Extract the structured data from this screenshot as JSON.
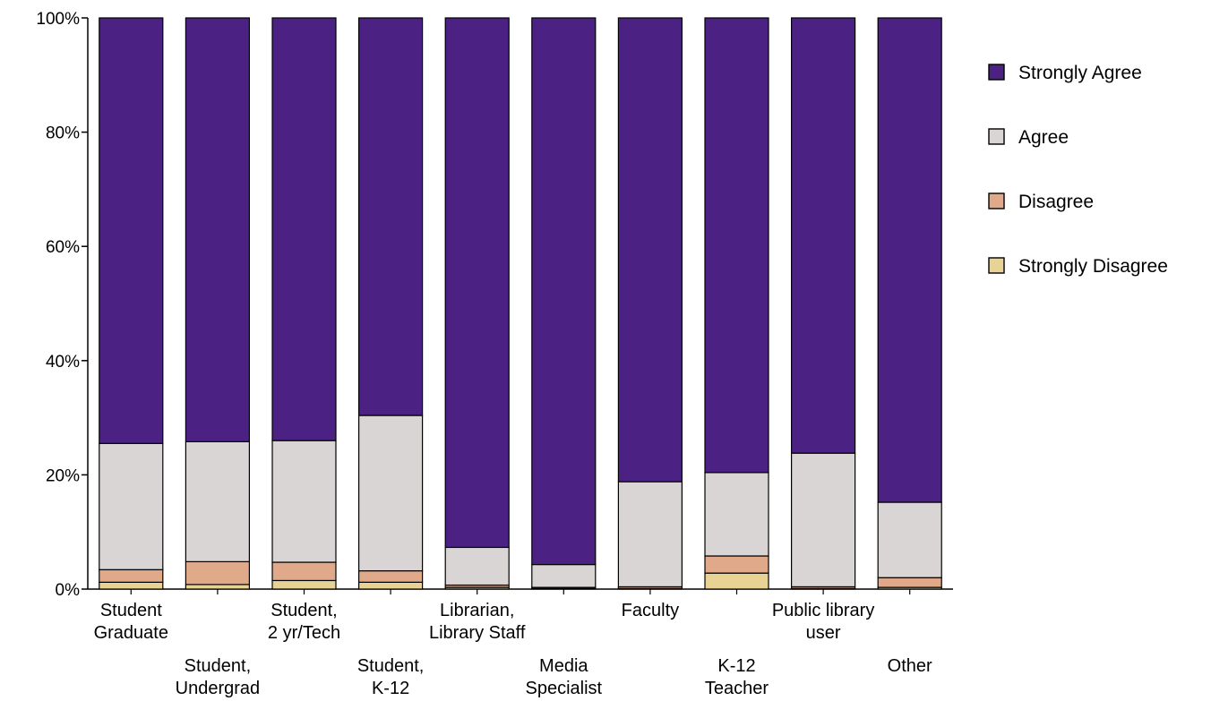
{
  "chart_data": {
    "type": "bar",
    "stacked": true,
    "percent": true,
    "ylim": [
      0,
      100
    ],
    "yticks": [
      {
        "value": 0,
        "label": "0%"
      },
      {
        "value": 20,
        "label": "20%"
      },
      {
        "value": 40,
        "label": "40%"
      },
      {
        "value": 60,
        "label": "60%"
      },
      {
        "value": 80,
        "label": "80%"
      },
      {
        "value": 100,
        "label": "100%"
      }
    ],
    "categories": [
      [
        "Student",
        "Graduate"
      ],
      [
        "Student,",
        "Undergrad"
      ],
      [
        "Student,",
        "2 yr/Tech"
      ],
      [
        "Student,",
        "K-12"
      ],
      [
        "Librarian,",
        "Library Staff"
      ],
      [
        "Media",
        "Specialist"
      ],
      [
        "Faculty"
      ],
      [
        "K-12",
        "Teacher"
      ],
      [
        "Public library",
        "user"
      ],
      [
        "Other"
      ]
    ],
    "label_rows": [
      0,
      1,
      0,
      1,
      0,
      1,
      0,
      1,
      0,
      1
    ],
    "series": [
      {
        "name": "Strongly Disagree",
        "color": "#e8d294",
        "values": [
          1.2,
          0.8,
          1.5,
          1.2,
          0.3,
          0.1,
          0.1,
          2.8,
          0.1,
          0.3
        ]
      },
      {
        "name": "Disagree",
        "color": "#e0a98a",
        "values": [
          2.2,
          4.0,
          3.2,
          2.0,
          0.4,
          0.2,
          0.3,
          3.0,
          0.3,
          1.7
        ]
      },
      {
        "name": "Agree",
        "color": "#d9d5d5",
        "values": [
          22.1,
          21.0,
          21.3,
          27.2,
          6.6,
          4.0,
          18.4,
          14.6,
          23.4,
          13.2
        ]
      },
      {
        "name": "Strongly Agree",
        "color": "#4b2283",
        "values": [
          74.5,
          74.2,
          74.0,
          69.6,
          92.7,
          95.7,
          81.2,
          79.6,
          76.2,
          84.8
        ]
      }
    ],
    "legend": {
      "position": "right",
      "order": [
        "Strongly Agree",
        "Agree",
        "Disagree",
        "Strongly Disagree"
      ]
    },
    "grid": false
  }
}
